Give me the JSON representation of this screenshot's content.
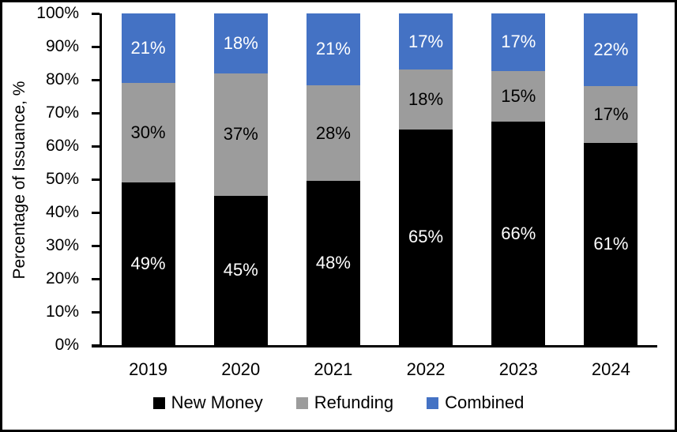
{
  "frame": {
    "background": "#ffffff",
    "border_color": "#000000"
  },
  "chart_data": {
    "type": "bar",
    "stacked": true,
    "title": "",
    "xlabel": "",
    "ylabel": "Percentage of Issuance, %",
    "ylim": [
      0,
      100
    ],
    "grid": false,
    "legend_position": "bottom",
    "categories": [
      "2019",
      "2020",
      "2021",
      "2022",
      "2023",
      "2024"
    ],
    "series": [
      {
        "name": "New Money",
        "color": "#000000",
        "label_color": "#ffffff",
        "values": [
          49,
          45,
          48,
          65,
          66,
          61
        ],
        "labels": [
          "49%",
          "45%",
          "48%",
          "65%",
          "66%",
          "61%"
        ]
      },
      {
        "name": "Refunding",
        "color": "#9C9C9C",
        "label_color": "#000000",
        "values": [
          30,
          37,
          28,
          18,
          15,
          17
        ],
        "labels": [
          "30%",
          "37%",
          "28%",
          "18%",
          "15%",
          "17%"
        ]
      },
      {
        "name": "Combined",
        "color": "#4472C4",
        "label_color": "#ffffff",
        "values": [
          21,
          18,
          21,
          17,
          17,
          22
        ],
        "labels": [
          "21%",
          "18%",
          "21%",
          "17%",
          "17%",
          "22%"
        ]
      }
    ],
    "y_ticks": [
      {
        "value": 0,
        "label": "0%"
      },
      {
        "value": 10,
        "label": "10%"
      },
      {
        "value": 20,
        "label": "20%"
      },
      {
        "value": 30,
        "label": "30%"
      },
      {
        "value": 40,
        "label": "40%"
      },
      {
        "value": 50,
        "label": "50%"
      },
      {
        "value": 60,
        "label": "60%"
      },
      {
        "value": 70,
        "label": "70%"
      },
      {
        "value": 80,
        "label": "80%"
      },
      {
        "value": 90,
        "label": "90%"
      },
      {
        "value": 100,
        "label": "100%"
      }
    ]
  }
}
